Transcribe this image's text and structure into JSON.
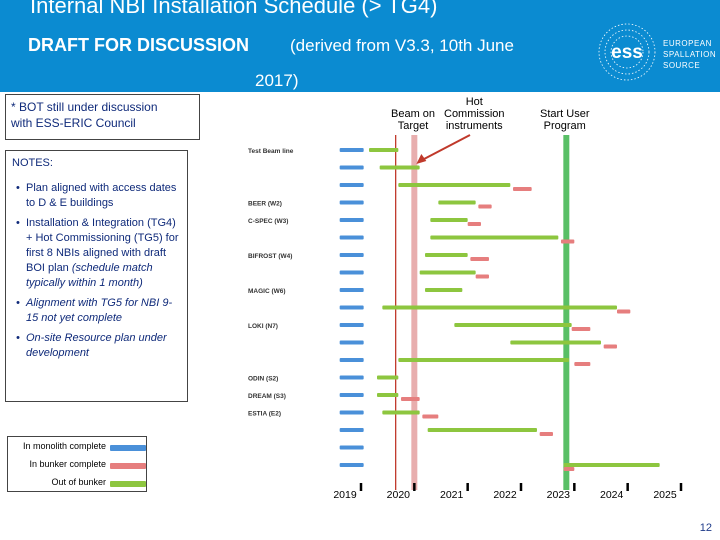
{
  "header": {
    "title": "Internal NBI Installation Schedule (> TG4)",
    "draft": "DRAFT FOR DISCUSSION",
    "derived_line1": "(derived from V3.3, 10th June",
    "derived_line2": "2017)",
    "logo_letters": "ess",
    "logo_text": [
      "EUROPEAN",
      "SPALLATION",
      "SOURCE"
    ]
  },
  "bot_note": {
    "line1": "* BOT still under discussion",
    "line2": "with ESS-ERIC Council"
  },
  "notes": {
    "heading": "NOTES:",
    "items": [
      {
        "text": "Plan aligned with access dates to D & E buildings",
        "italic": false
      },
      {
        "text": "Installation & Integration (TG4) + Hot Commissioning (TG5) for first 8 NBIs aligned with draft BOI plan",
        "italic": false,
        "extra": "(schedule match typically within 1 month)"
      },
      {
        "text": "Alignment with TG5 for NBI 9-15 not yet complete",
        "italic": true
      },
      {
        "text": "On-site Resource plan under development",
        "italic": true
      }
    ]
  },
  "legend": {
    "items": [
      {
        "label": "In monolith complete",
        "color": "#4a90d9"
      },
      {
        "label": "In bunker complete",
        "color": "#e67e7e"
      },
      {
        "label": "Out of bunker",
        "color": "#8dc63f"
      }
    ]
  },
  "annotations": {
    "beam_on_target": [
      "Beam on",
      "Target"
    ],
    "hot_commission": [
      "Hot",
      "Commission",
      "instruments"
    ],
    "start_user_program": [
      "Start User",
      "Program"
    ]
  },
  "chart_data": {
    "type": "gantt",
    "x_ticks": [
      "2019",
      "2020",
      "2021",
      "2022",
      "2023",
      "2024",
      "2025"
    ],
    "row_labels": [
      "Test Beam line",
      "BEER (W2)",
      "C-SPEC (W3)",
      "BIFROST (W4)",
      "MAGIC (W6)",
      "LOKI (N7)",
      "ODIN (S2)",
      "DREAM (S3)",
      "ESTIA (E2)"
    ],
    "milestones": {
      "beam_on_target": 2019.95,
      "hot_commission": 2020.3,
      "start_user_program": 2023.15
    },
    "rows": [
      {
        "label": "Test Beam line",
        "blue": [
          2018.9,
          2019.35
        ],
        "green": [
          2019.45,
          2020.0
        ],
        "red": null
      },
      {
        "label": "",
        "blue": [
          2018.9,
          2019.35
        ],
        "green": [
          2019.65,
          2020.4
        ],
        "red": null
      },
      {
        "label": "",
        "blue": [
          2018.9,
          2019.35
        ],
        "green": [
          2020.0,
          2022.1
        ],
        "red": [
          2022.15,
          2022.5
        ]
      },
      {
        "label": "BEER (W2)",
        "blue": [
          2018.9,
          2019.35
        ],
        "green": [
          2020.75,
          2021.45
        ],
        "red": [
          2021.5,
          2021.75
        ]
      },
      {
        "label": "C-SPEC (W3)",
        "blue": [
          2018.9,
          2019.35
        ],
        "green": [
          2020.6,
          2021.3
        ],
        "red": [
          2021.3,
          2021.55
        ]
      },
      {
        "label": "",
        "blue": [
          2018.9,
          2019.35
        ],
        "green": [
          2020.6,
          2023.0
        ],
        "red": [
          2023.05,
          2023.3
        ]
      },
      {
        "label": "BIFROST (W4)",
        "blue": [
          2018.9,
          2019.35
        ],
        "green": [
          2020.5,
          2021.3
        ],
        "red": [
          2021.35,
          2021.7
        ]
      },
      {
        "label": "",
        "blue": [
          2018.9,
          2019.35
        ],
        "green": [
          2020.4,
          2021.45
        ],
        "red": [
          2021.45,
          2021.7
        ]
      },
      {
        "label": "MAGIC (W6)",
        "blue": [
          2018.9,
          2019.35
        ],
        "green": [
          2020.5,
          2021.2
        ],
        "red": null
      },
      {
        "label": "",
        "blue": [
          2018.9,
          2019.35
        ],
        "green": [
          2019.7,
          2024.1
        ],
        "red": [
          2024.1,
          2024.35
        ]
      },
      {
        "label": "LOKI (N7)",
        "blue": [
          2018.9,
          2019.35
        ],
        "green": [
          2021.05,
          2023.25
        ],
        "red": [
          2023.25,
          2023.6
        ]
      },
      {
        "label": "",
        "blue": [
          2018.9,
          2019.35
        ],
        "green": [
          2022.1,
          2023.8
        ],
        "red": [
          2023.85,
          2024.1
        ]
      },
      {
        "label": "",
        "blue": [
          2018.9,
          2019.35
        ],
        "green": [
          2020.0,
          2023.2
        ],
        "red": [
          2023.3,
          2023.6
        ]
      },
      {
        "label": "ODIN (S2)",
        "blue": [
          2018.9,
          2019.35
        ],
        "green": [
          2019.6,
          2020.0
        ],
        "red": null
      },
      {
        "label": "DREAM (S3)",
        "blue": [
          2018.9,
          2019.35
        ],
        "green": [
          2019.6,
          2020.0
        ],
        "red": [
          2020.05,
          2020.4
        ]
      },
      {
        "label": "ESTIA (E2)",
        "blue": [
          2018.9,
          2019.35
        ],
        "green": [
          2019.7,
          2020.4
        ],
        "red": [
          2020.45,
          2020.75
        ]
      },
      {
        "label": "",
        "blue": [
          2018.9,
          2019.35
        ],
        "green": [
          2020.55,
          2022.6
        ],
        "red": [
          2022.65,
          2022.9
        ]
      },
      {
        "label": "",
        "blue": [
          2018.9,
          2019.35
        ],
        "green": null,
        "red": null
      },
      {
        "label": "",
        "blue": [
          2018.9,
          2019.35
        ],
        "green": [
          2023.1,
          2024.9
        ],
        "red": [
          2023.1,
          2023.3
        ]
      }
    ]
  },
  "page_number": "12"
}
